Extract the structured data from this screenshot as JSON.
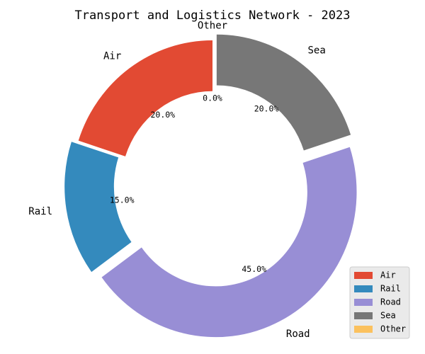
{
  "chart_data": {
    "type": "pie",
    "style": "donut",
    "title": "Transport and Logistics Network - 2023",
    "categories": [
      "Air",
      "Rail",
      "Road",
      "Sea",
      "Other"
    ],
    "values": [
      20.0,
      15.0,
      45.0,
      20.0,
      0.0
    ],
    "percent_labels": [
      "20.0%",
      "15.0%",
      "45.0%",
      "20.0%",
      "0.0%"
    ],
    "colors": [
      "#E24A33",
      "#348ABD",
      "#988ED5",
      "#777777",
      "#FBC15E"
    ],
    "exploded": [
      false,
      true,
      true,
      true,
      false
    ],
    "start_angle_deg": 90,
    "direction": "counterclockwise",
    "legend": {
      "position": "lower-right",
      "entries": [
        "Air",
        "Rail",
        "Road",
        "Sea",
        "Other"
      ]
    }
  }
}
